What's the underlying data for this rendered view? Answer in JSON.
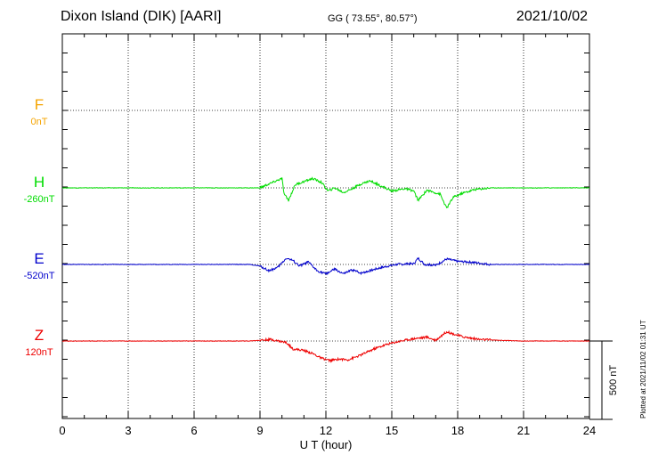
{
  "header": {
    "station": "Dixon Island (DIK)  [AARI]",
    "coords": "GG ( 73.55°,  80.57°)",
    "date": "2021/10/02"
  },
  "side_note": "Plotted at 2021/11/02 01:31  UT",
  "chart_data": {
    "type": "line",
    "xlabel": "U T (hour)",
    "xlim": [
      0,
      24
    ],
    "xticks": [
      "0",
      "3",
      "6",
      "9",
      "12",
      "15",
      "18",
      "21",
      "24"
    ],
    "scale_bar_label": "500 nT",
    "channels": [
      {
        "name": "F",
        "baseline_label": "0nT",
        "color": "#f5a400",
        "values": []
      },
      {
        "name": "H",
        "baseline_label": "-260nT",
        "color": "#00dd00",
        "values": [
          [
            0,
            0
          ],
          [
            9,
            0
          ],
          [
            9.5,
            30
          ],
          [
            10,
            60
          ],
          [
            10.1,
            -40
          ],
          [
            10.3,
            -80
          ],
          [
            10.6,
            20
          ],
          [
            11,
            40
          ],
          [
            11.4,
            60
          ],
          [
            11.8,
            35
          ],
          [
            12.1,
            -20
          ],
          [
            12.4,
            0
          ],
          [
            12.8,
            -30
          ],
          [
            13.2,
            -5
          ],
          [
            13.6,
            25
          ],
          [
            14,
            45
          ],
          [
            14.4,
            20
          ],
          [
            15,
            -20
          ],
          [
            15.6,
            -5
          ],
          [
            16,
            -20
          ],
          [
            16.2,
            -80
          ],
          [
            16.6,
            -15
          ],
          [
            17.2,
            -40
          ],
          [
            17.5,
            -130
          ],
          [
            17.8,
            -60
          ],
          [
            18.2,
            -35
          ],
          [
            18.8,
            -10
          ],
          [
            19.5,
            0
          ],
          [
            24,
            0
          ]
        ]
      },
      {
        "name": "E",
        "baseline_label": "-520nT",
        "color": "#0000cc",
        "values": [
          [
            0,
            0
          ],
          [
            8.5,
            0
          ],
          [
            9,
            -10
          ],
          [
            9.4,
            -40
          ],
          [
            9.8,
            -20
          ],
          [
            10.2,
            40
          ],
          [
            10.5,
            25
          ],
          [
            10.8,
            -10
          ],
          [
            11.2,
            15
          ],
          [
            11.6,
            -40
          ],
          [
            12,
            -60
          ],
          [
            12.4,
            -30
          ],
          [
            12.8,
            -60
          ],
          [
            13.2,
            -35
          ],
          [
            13.6,
            -55
          ],
          [
            14,
            -40
          ],
          [
            14.5,
            -20
          ],
          [
            15.2,
            0
          ],
          [
            16,
            5
          ],
          [
            16.2,
            40
          ],
          [
            16.5,
            0
          ],
          [
            17,
            -5
          ],
          [
            17.5,
            35
          ],
          [
            18,
            20
          ],
          [
            18.6,
            15
          ],
          [
            19.5,
            0
          ],
          [
            24,
            0
          ]
        ]
      },
      {
        "name": "Z",
        "baseline_label": "120nT",
        "color": "#ee0000",
        "values": [
          [
            0,
            0
          ],
          [
            8.5,
            0
          ],
          [
            9.5,
            10
          ],
          [
            10.2,
            -10
          ],
          [
            10.5,
            -50
          ],
          [
            11,
            -60
          ],
          [
            11.4,
            -80
          ],
          [
            11.8,
            -110
          ],
          [
            12.2,
            -125
          ],
          [
            12.6,
            -115
          ],
          [
            13,
            -120
          ],
          [
            13.5,
            -95
          ],
          [
            14.2,
            -50
          ],
          [
            14.8,
            -20
          ],
          [
            15.4,
            0
          ],
          [
            16,
            15
          ],
          [
            16.6,
            25
          ],
          [
            17,
            5
          ],
          [
            17.5,
            60
          ],
          [
            17.8,
            45
          ],
          [
            18.3,
            25
          ],
          [
            19,
            10
          ],
          [
            19.8,
            5
          ],
          [
            21,
            0
          ],
          [
            24,
            0
          ]
        ]
      }
    ]
  }
}
